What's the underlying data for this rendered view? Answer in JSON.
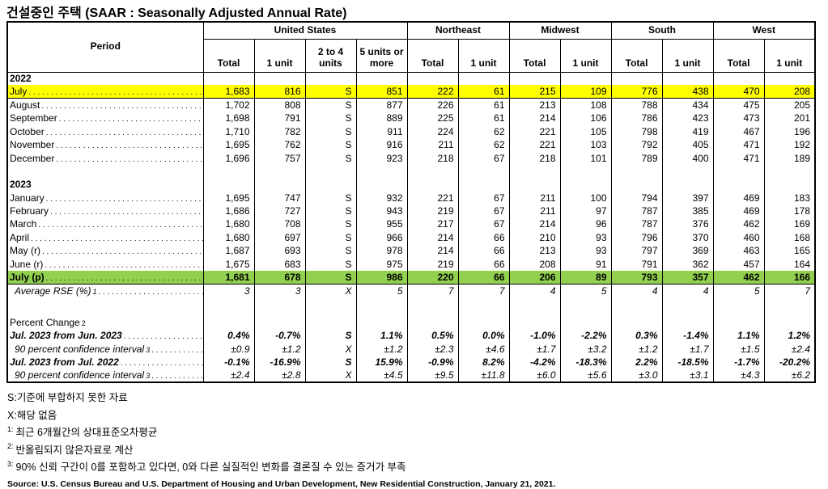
{
  "title": "건설중인 주택 (SAAR : Seasonally Adjusted Annual Rate)",
  "colors": {
    "highlight_yellow": "#FFFF00",
    "highlight_green": "#92D050",
    "border": "#000000"
  },
  "table": {
    "period_header": "Period",
    "groups": [
      {
        "label": "United States",
        "cols": [
          "Total",
          "1 unit",
          "2 to 4 units",
          "5 units or more"
        ]
      },
      {
        "label": "Northeast",
        "cols": [
          "Total",
          "1 unit"
        ]
      },
      {
        "label": "Midwest",
        "cols": [
          "Total",
          "1 unit"
        ]
      },
      {
        "label": "South",
        "cols": [
          "Total",
          "1 unit"
        ]
      },
      {
        "label": "West",
        "cols": [
          "Total",
          "1 unit"
        ]
      }
    ],
    "rows": [
      {
        "type": "year",
        "label": "2022"
      },
      {
        "type": "data",
        "label": "July",
        "dots": true,
        "highlight": "yellow",
        "border_bottom": true,
        "values": [
          "1,683",
          "816",
          "S",
          "851",
          "222",
          "61",
          "215",
          "109",
          "776",
          "438",
          "470",
          "208"
        ]
      },
      {
        "type": "data",
        "label": "August",
        "dots": true,
        "values": [
          "1,702",
          "808",
          "S",
          "877",
          "226",
          "61",
          "213",
          "108",
          "788",
          "434",
          "475",
          "205"
        ]
      },
      {
        "type": "data",
        "label": "September",
        "dots": true,
        "values": [
          "1,698",
          "791",
          "S",
          "889",
          "225",
          "61",
          "214",
          "106",
          "786",
          "423",
          "473",
          "201"
        ]
      },
      {
        "type": "data",
        "label": "October",
        "dots": true,
        "values": [
          "1,710",
          "782",
          "S",
          "911",
          "224",
          "62",
          "221",
          "105",
          "798",
          "419",
          "467",
          "196"
        ]
      },
      {
        "type": "data",
        "label": "November",
        "dots": true,
        "values": [
          "1,695",
          "762",
          "S",
          "916",
          "211",
          "62",
          "221",
          "103",
          "792",
          "405",
          "471",
          "192"
        ]
      },
      {
        "type": "data",
        "label": "December",
        "dots": true,
        "values": [
          "1,696",
          "757",
          "S",
          "923",
          "218",
          "67",
          "218",
          "101",
          "789",
          "400",
          "471",
          "189"
        ]
      },
      {
        "type": "empty"
      },
      {
        "type": "year",
        "label": "2023"
      },
      {
        "type": "data",
        "label": "January",
        "dots": true,
        "values": [
          "1,695",
          "747",
          "S",
          "932",
          "221",
          "67",
          "211",
          "100",
          "794",
          "397",
          "469",
          "183"
        ]
      },
      {
        "type": "data",
        "label": "February",
        "dots": true,
        "values": [
          "1,686",
          "727",
          "S",
          "943",
          "219",
          "67",
          "211",
          "97",
          "787",
          "385",
          "469",
          "178"
        ]
      },
      {
        "type": "data",
        "label": "March",
        "dots": true,
        "values": [
          "1,680",
          "708",
          "S",
          "955",
          "217",
          "67",
          "214",
          "96",
          "787",
          "376",
          "462",
          "169"
        ]
      },
      {
        "type": "data",
        "label": "April",
        "dots": true,
        "values": [
          "1,680",
          "697",
          "S",
          "966",
          "214",
          "66",
          "210",
          "93",
          "796",
          "370",
          "460",
          "168"
        ]
      },
      {
        "type": "data",
        "label": "May (r)",
        "dots": true,
        "values": [
          "1,687",
          "693",
          "S",
          "978",
          "214",
          "66",
          "213",
          "93",
          "797",
          "369",
          "463",
          "165"
        ]
      },
      {
        "type": "data",
        "label": "June (r)",
        "dots": true,
        "values": [
          "1,675",
          "683",
          "S",
          "975",
          "219",
          "66",
          "208",
          "91",
          "791",
          "362",
          "457",
          "164"
        ]
      },
      {
        "type": "data",
        "label": "July (p)",
        "dots": true,
        "highlight": "green",
        "bold": true,
        "border_bottom": true,
        "values": [
          "1,681",
          "678",
          "S",
          "986",
          "220",
          "66",
          "206",
          "89",
          "793",
          "357",
          "462",
          "166"
        ]
      },
      {
        "type": "data",
        "label": "Average RSE (%)",
        "sup": "1",
        "dots": true,
        "italic": true,
        "indent": true,
        "values": [
          "3",
          "3",
          "X",
          "5",
          "7",
          "7",
          "4",
          "5",
          "4",
          "4",
          "5",
          "7"
        ]
      },
      {
        "type": "empty",
        "tall": true
      },
      {
        "type": "data",
        "label": "Percent Change",
        "sup": "2",
        "values": [
          "",
          "",
          "",
          "",
          "",
          "",
          "",
          "",
          "",
          "",
          "",
          ""
        ]
      },
      {
        "type": "data",
        "label": "Jul. 2023 from Jun. 2023",
        "dots": true,
        "bold": true,
        "italic": true,
        "values": [
          "0.4%",
          "-0.7%",
          "S",
          "1.1%",
          "0.5%",
          "0.0%",
          "-1.0%",
          "-2.2%",
          "0.3%",
          "-1.4%",
          "1.1%",
          "1.2%"
        ]
      },
      {
        "type": "data",
        "label": "90 percent confidence interval",
        "sup": "3",
        "dots": true,
        "italic": true,
        "indent": true,
        "values": [
          "±0.9",
          "±1.2",
          "X",
          "±1.2",
          "±2.3",
          "±4.6",
          "±1.7",
          "±3.2",
          "±1.2",
          "±1.7",
          "±1.5",
          "±2.4"
        ]
      },
      {
        "type": "data",
        "label": "Jul. 2023 from Jul. 2022",
        "dots": true,
        "bold": true,
        "italic": true,
        "values": [
          "-0.1%",
          "-16.9%",
          "S",
          "15.9%",
          "-0.9%",
          "8.2%",
          "-4.2%",
          "-18.3%",
          "2.2%",
          "-18.5%",
          "-1.7%",
          "-20.2%"
        ]
      },
      {
        "type": "data",
        "label": "90 percent confidence interval",
        "sup": "3",
        "dots": true,
        "italic": true,
        "indent": true,
        "values": [
          "±2.4",
          "±2.8",
          "X",
          "±4.5",
          "±9.5",
          "±11.8",
          "±6.0",
          "±5.6",
          "±3.0",
          "±3.1",
          "±4.3",
          "±6.2"
        ]
      }
    ]
  },
  "footnotes": [
    {
      "prefix": "S:",
      "text": "기준에 부합하지 못한 자료"
    },
    {
      "prefix": "X:",
      "text": "해당 없음"
    },
    {
      "sup": "1:",
      "text": "최근 6개월간의 상대표준오차평균"
    },
    {
      "sup": "2:",
      "text": "반올림되지 않은자료로 계산"
    },
    {
      "sup": "3:",
      "text": "90% 신뢰 구간이 0를 포함하고 있다면, 0와 다른 실질적인 변화를 결론질 수 있는 증거가 부족"
    }
  ],
  "source": "Source: U.S. Census Bureau and U.S. Department of Housing and Urban Development, New Residential Construction, January 21, 2021."
}
